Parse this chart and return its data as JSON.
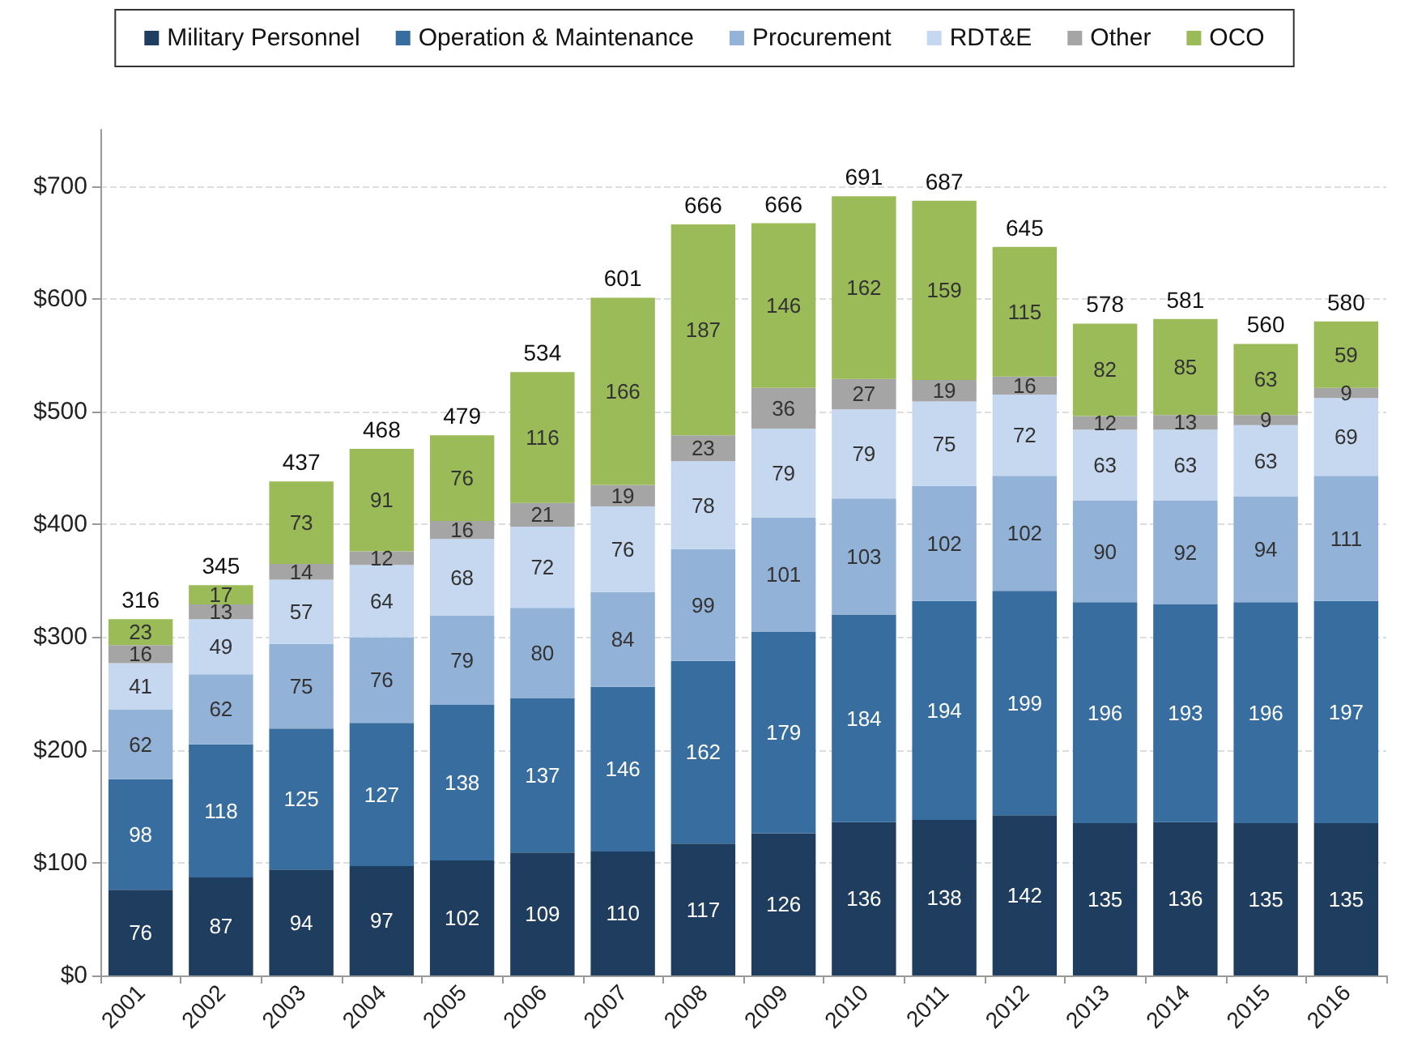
{
  "chart_data": {
    "type": "bar",
    "stacked": true,
    "data_labels": true,
    "grid": "y",
    "legend": "top",
    "categories": [
      "2001",
      "2002",
      "2003",
      "2004",
      "2005",
      "2006",
      "2007",
      "2008",
      "2009",
      "2010",
      "2011",
      "2012",
      "2013",
      "2014",
      "2015",
      "2016"
    ],
    "series": [
      {
        "name": "Military Personnel",
        "color": "#1f3d5e",
        "values": [
          76,
          87,
          94,
          97,
          102,
          109,
          110,
          117,
          126,
          136,
          138,
          142,
          135,
          136,
          135,
          135
        ]
      },
      {
        "name": "Operation & Maintenance",
        "color": "#376d9f",
        "values": [
          98,
          118,
          125,
          127,
          138,
          137,
          146,
          162,
          179,
          184,
          194,
          199,
          196,
          193,
          196,
          197
        ]
      },
      {
        "name": "Procurement",
        "color": "#93b2d8",
        "values": [
          62,
          62,
          75,
          76,
          79,
          80,
          84,
          99,
          101,
          103,
          102,
          102,
          90,
          92,
          94,
          111
        ]
      },
      {
        "name": "RDT&E",
        "color": "#c6d8ef",
        "values": [
          41,
          49,
          57,
          64,
          68,
          72,
          76,
          78,
          79,
          79,
          75,
          72,
          63,
          63,
          63,
          69
        ]
      },
      {
        "name": "Other",
        "color": "#a5a5a5",
        "values": [
          16,
          13,
          14,
          12,
          16,
          21,
          19,
          23,
          36,
          27,
          19,
          16,
          12,
          13,
          9,
          9
        ]
      },
      {
        "name": "OCO",
        "color": "#9bbb59",
        "values": [
          23,
          17,
          73,
          91,
          76,
          116,
          166,
          187,
          146,
          162,
          159,
          115,
          82,
          85,
          63,
          59
        ]
      }
    ],
    "totals": [
      "316",
      "345",
      "437",
      "468",
      "479",
      "534",
      "601",
      "666",
      "666",
      "691",
      "687",
      "645",
      "578",
      "581",
      "560",
      "580"
    ],
    "ylim": [
      0,
      750
    ],
    "yticks": [
      {
        "value": 0,
        "label": "$0"
      },
      {
        "value": 100,
        "label": "$100"
      },
      {
        "value": 200,
        "label": "$200"
      },
      {
        "value": 300,
        "label": "$300"
      },
      {
        "value": 400,
        "label": "$400"
      },
      {
        "value": 500,
        "label": "$500"
      },
      {
        "value": 600,
        "label": "$600"
      },
      {
        "value": 700,
        "label": "$700"
      }
    ]
  }
}
